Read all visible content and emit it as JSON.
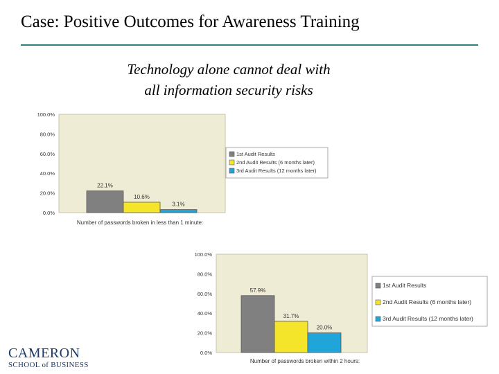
{
  "slide": {
    "title": "Case: Positive Outcomes for Awareness Training",
    "subtitle_line1": "Technology alone cannot deal with",
    "subtitle_line2": "all information security risks"
  },
  "logo": {
    "line1": "CAMERON",
    "line2": "SCHOOL of BUSINESS"
  },
  "colors": {
    "rule": "#2f7f78",
    "series1": "#808080",
    "series2": "#f5e52a",
    "series3": "#1fa5d8",
    "plot_bg": "#efecd6"
  },
  "chart_data": [
    {
      "type": "bar",
      "categories": [
        "Number of passwords broken in less than 1 minute:"
      ],
      "series": [
        {
          "name": "1st Audit Results",
          "values": [
            22.1
          ],
          "label": "22.1%"
        },
        {
          "name": "2nd Audit Results (6 months later)",
          "values": [
            10.6
          ],
          "label": "10.6%"
        },
        {
          "name": "3rd Audit Results (12 months later)",
          "values": [
            3.1
          ],
          "label": "3.1%"
        }
      ],
      "xlabel": "Number of passwords broken in less than 1 minute:",
      "ylim": [
        0,
        100
      ],
      "yticks": [
        "100.0%",
        "80.0%",
        "60.0%",
        "40.0%",
        "20.0%",
        "0.0%"
      ],
      "legend": "right",
      "grid": false
    },
    {
      "type": "bar",
      "categories": [
        "Number of passwords broken within 2 hours:"
      ],
      "series": [
        {
          "name": "1st Audit Results",
          "values": [
            57.9
          ],
          "label": "57.9%"
        },
        {
          "name": "2nd Audit Results (6 months later)",
          "values": [
            31.7
          ],
          "label": "31.7%"
        },
        {
          "name": "3rd Audit Results (12 months later)",
          "values": [
            20.0
          ],
          "label": "20.0%"
        }
      ],
      "xlabel": "Number of passwords broken within 2 hours:",
      "ylim": [
        0,
        100
      ],
      "yticks": [
        "100.0%",
        "80.0%",
        "60.0%",
        "40.0%",
        "20.0%",
        "0.0%"
      ],
      "legend": "right",
      "grid": false
    }
  ]
}
